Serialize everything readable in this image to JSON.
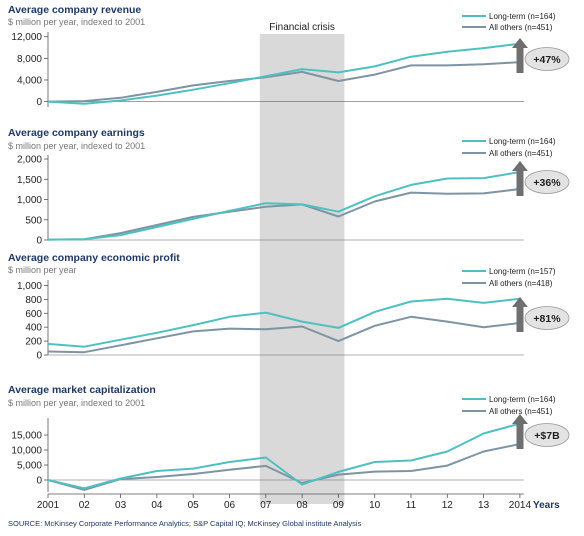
{
  "colors": {
    "long_term": "#4fc0c2",
    "all_others": "#7f94a3",
    "band": "#d9d9d9",
    "badge_fill": "#e3e3e3",
    "arrow": "#6f6f6f",
    "title": "#1f3864"
  },
  "crisis_label": "Financial crisis",
  "years_label": "Years",
  "source": "SOURCE: McKinsey Corporate Performance Analytics; S&P Capital IQ; McKinsey Global institute Analysis",
  "x_tick_labels": [
    "2001",
    "02",
    "03",
    "04",
    "05",
    "06",
    "07",
    "08",
    "09",
    "10",
    "11",
    "12",
    "13",
    "2014"
  ],
  "crisis_band": [
    2007,
    2009
  ],
  "chart_data": [
    {
      "type": "line",
      "title": "Average company revenue",
      "subtitle": "$ million per year, indexed to 2001",
      "x": [
        2001,
        2002,
        2003,
        2004,
        2005,
        2006,
        2007,
        2008,
        2009,
        2010,
        2011,
        2012,
        2013,
        2014
      ],
      "ylim": [
        -1000,
        12500
      ],
      "yticks": [
        0,
        4000,
        8000,
        12000
      ],
      "ytick_labels": [
        "0",
        "4,000",
        "8,000",
        "12,000"
      ],
      "series": [
        {
          "name": "Long-term (n=164)",
          "values": [
            0,
            -400,
            200,
            1100,
            2200,
            3400,
            4700,
            6000,
            5400,
            6500,
            8300,
            9200,
            9900,
            10700
          ]
        },
        {
          "name": "All others (n=451)",
          "values": [
            0,
            100,
            700,
            1800,
            3000,
            3800,
            4500,
            5500,
            3800,
            5000,
            6700,
            6700,
            6900,
            7300
          ]
        }
      ],
      "badge": "+47%"
    },
    {
      "type": "line",
      "title": "Average company earnings",
      "subtitle": "$ million per year, indexed to 2001",
      "x": [
        2001,
        2002,
        2003,
        2004,
        2005,
        2006,
        2007,
        2008,
        2009,
        2010,
        2011,
        2012,
        2013,
        2014
      ],
      "ylim": [
        0,
        2050
      ],
      "yticks": [
        0,
        500,
        1000,
        1500,
        2000
      ],
      "ytick_labels": [
        "0",
        "500",
        "1,000",
        "1,500",
        "2,000"
      ],
      "series": [
        {
          "name": "Long-term (n=164)",
          "values": [
            10,
            20,
            120,
            320,
            520,
            720,
            910,
            880,
            700,
            1080,
            1360,
            1520,
            1530,
            1680
          ]
        },
        {
          "name": "All others (n=451)",
          "values": [
            10,
            20,
            170,
            370,
            570,
            700,
            820,
            880,
            580,
            950,
            1170,
            1140,
            1150,
            1260
          ]
        }
      ],
      "badge": "+36%"
    },
    {
      "type": "line",
      "title": "Average company economic profit",
      "subtitle": "$ million per year",
      "x": [
        2001,
        2002,
        2003,
        2004,
        2005,
        2006,
        2007,
        2008,
        2009,
        2010,
        2011,
        2012,
        2013,
        2014
      ],
      "ylim": [
        0,
        1050
      ],
      "yticks": [
        0,
        200,
        400,
        600,
        800,
        1000
      ],
      "ytick_labels": [
        "0",
        "200",
        "400",
        "600",
        "800",
        "1,000"
      ],
      "series": [
        {
          "name": "Long-term (n=157)",
          "values": [
            160,
            120,
            220,
            320,
            430,
            550,
            610,
            480,
            390,
            620,
            770,
            810,
            750,
            810
          ]
        },
        {
          "name": "All others (n=418)",
          "values": [
            50,
            40,
            140,
            240,
            340,
            380,
            370,
            410,
            200,
            420,
            550,
            480,
            400,
            460
          ]
        }
      ],
      "badge": "+81%"
    },
    {
      "type": "line",
      "title": "Average market capitalization",
      "subtitle": "$ million per year, indexed to 2001",
      "x": [
        2001,
        2002,
        2003,
        2004,
        2005,
        2006,
        2007,
        2008,
        2009,
        2010,
        2011,
        2012,
        2013,
        2014
      ],
      "ylim": [
        -4000,
        20000
      ],
      "yticks": [
        0,
        5000,
        10000,
        15000
      ],
      "ytick_labels": [
        "0",
        "5,000",
        "10,000",
        "15,000"
      ],
      "series": [
        {
          "name": "Long-term (n=164)",
          "values": [
            0,
            -2800,
            500,
            3000,
            3800,
            6000,
            7500,
            -1500,
            2700,
            6000,
            6500,
            9500,
            15500,
            18800
          ]
        },
        {
          "name": "All others (n=451)",
          "values": [
            0,
            -3300,
            300,
            1000,
            2000,
            3400,
            4700,
            -1000,
            1800,
            2800,
            3000,
            4800,
            9500,
            12000
          ]
        }
      ],
      "badge": "+$7B"
    }
  ]
}
